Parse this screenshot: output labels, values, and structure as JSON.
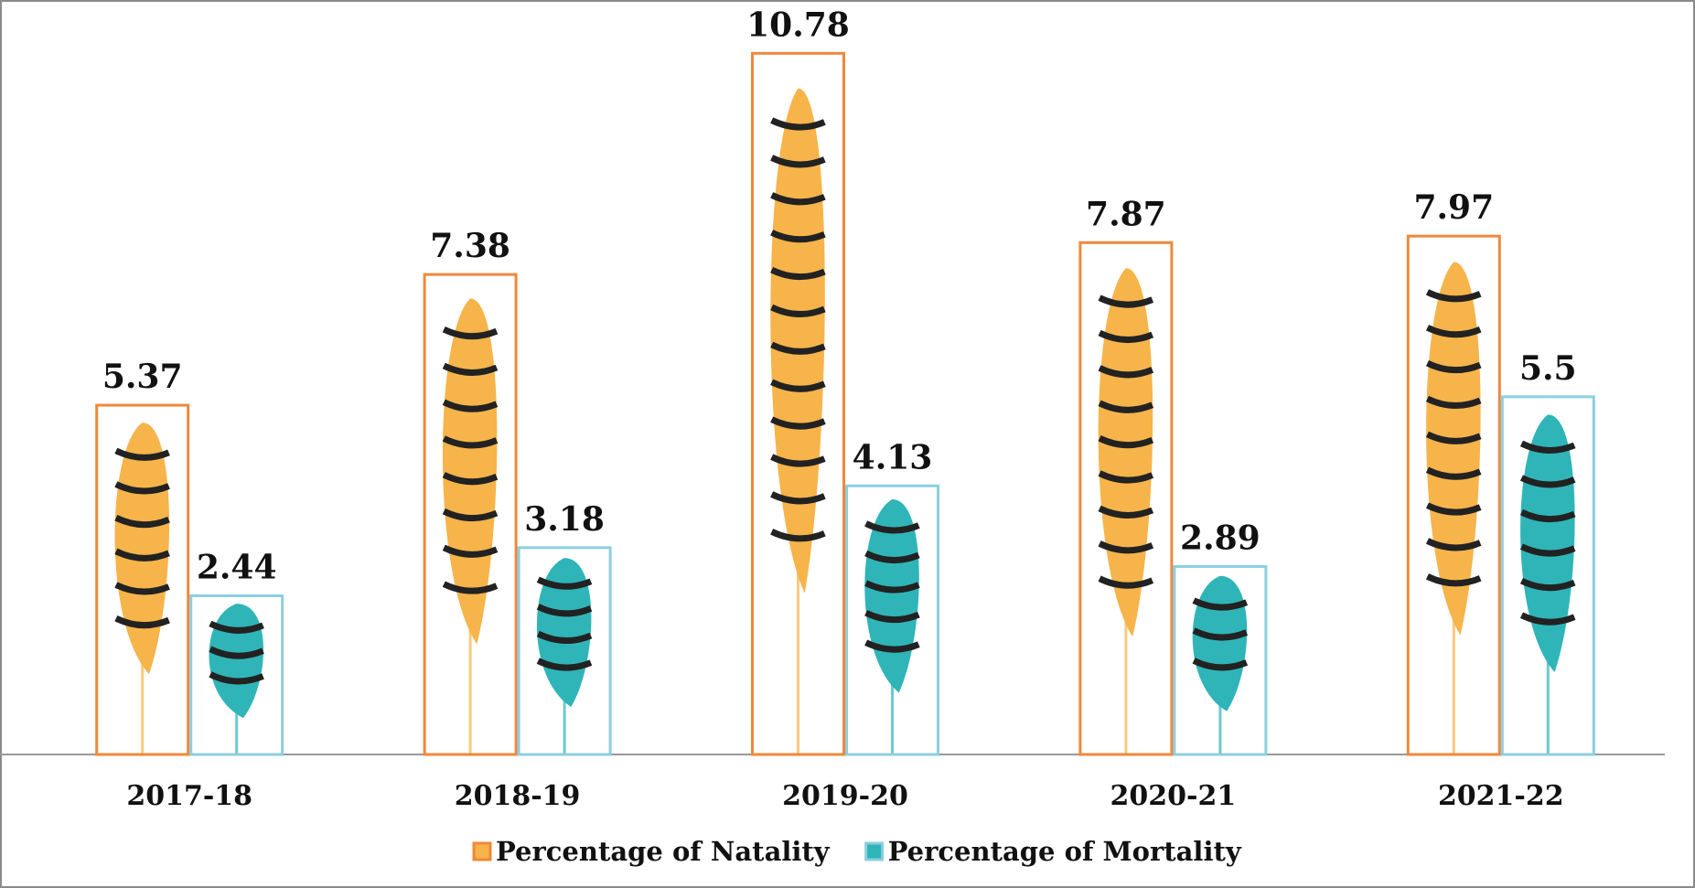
{
  "chart_data": {
    "type": "bar",
    "categories": [
      "2017-18",
      "2018-19",
      "2019-20",
      "2020-21",
      "2021-22"
    ],
    "series": [
      {
        "name": "Percentage of Natality",
        "color": "#f0883a",
        "fill": "#f6b44a",
        "values": [
          5.37,
          7.38,
          10.78,
          7.87,
          7.97
        ]
      },
      {
        "name": "Percentage of Mortality",
        "color": "#8ccfe0",
        "fill": "#2fb5b8",
        "values": [
          2.44,
          3.18,
          4.13,
          2.89,
          5.5
        ]
      }
    ],
    "ylim": [
      0,
      11.6
    ],
    "legend": "bottom"
  }
}
